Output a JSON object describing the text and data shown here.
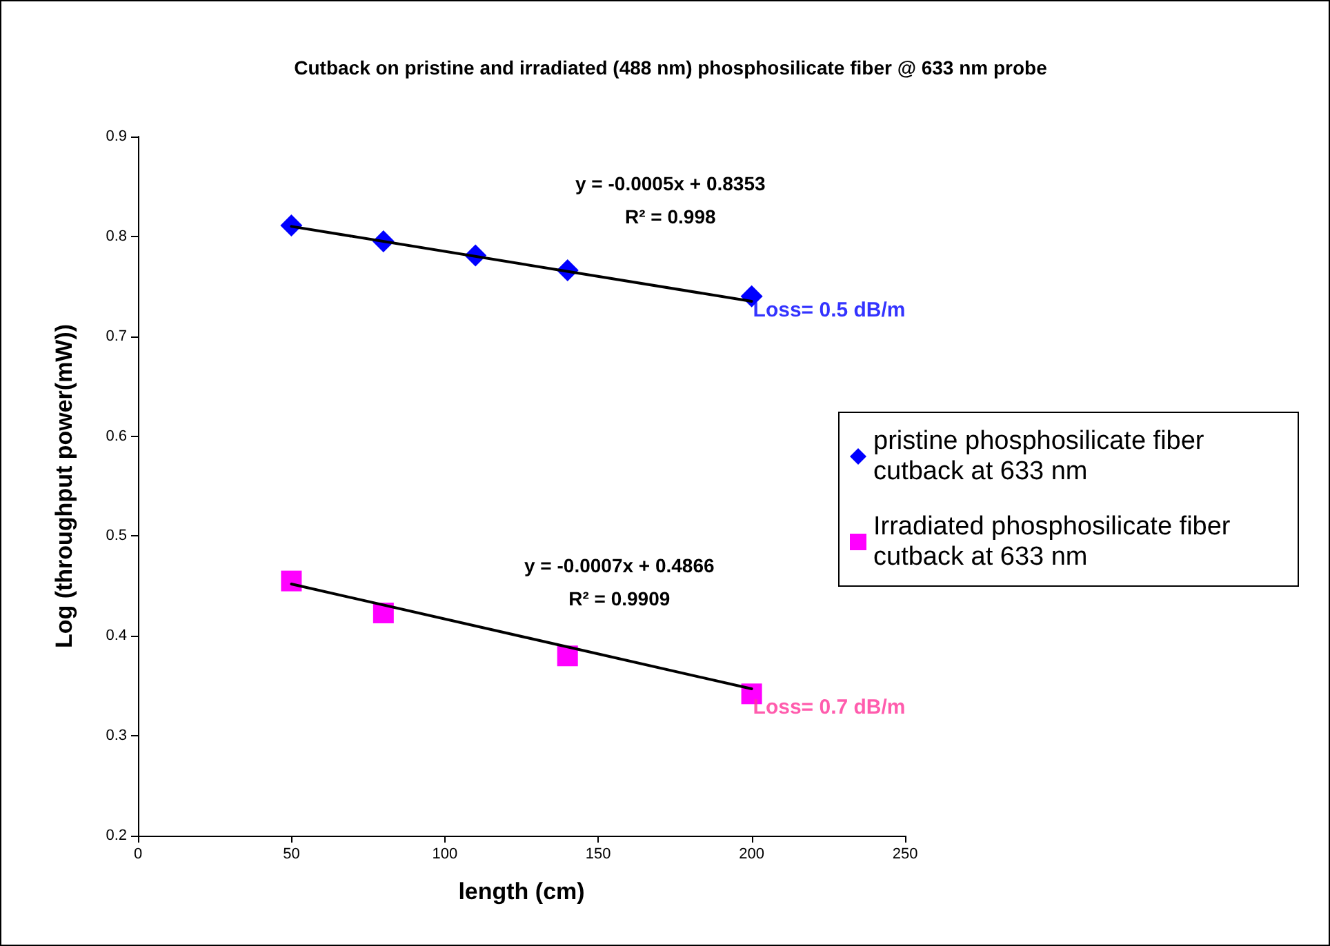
{
  "chart_data": {
    "type": "scatter",
    "title": "Cutback on pristine and irradiated (488 nm) phosphosilicate fiber @ 633 nm probe",
    "xlabel": "length (cm)",
    "ylabel": "Log (throughput power(mW))",
    "xlim": [
      0,
      250
    ],
    "xticks": [
      0,
      50,
      100,
      150,
      200,
      250
    ],
    "ylim": [
      0.2,
      0.9
    ],
    "yticks": [
      0.2,
      0.3,
      0.4,
      0.5,
      0.6,
      0.7,
      0.8,
      0.9
    ],
    "grid": false,
    "legend": "right",
    "series": [
      {
        "name": "pristine phosphosilicate fiber cutback at 633 nm",
        "color": "#0000ff",
        "marker": "diamond",
        "x": [
          50,
          80,
          110,
          140,
          200
        ],
        "values": [
          0.811,
          0.795,
          0.781,
          0.766,
          0.74
        ]
      },
      {
        "type": "line",
        "color": "#000000",
        "marker": "none",
        "x": [
          50,
          200
        ],
        "values": [
          0.81,
          0.735
        ]
      },
      {
        "name": "Irradiated phosphosilicate fiber cutback at 633 nm",
        "color": "#ff00ff",
        "marker": "square",
        "x": [
          50,
          80,
          140,
          200
        ],
        "values": [
          0.455,
          0.423,
          0.38,
          0.342
        ]
      },
      {
        "type": "line",
        "color": "#000000",
        "marker": "none",
        "x": [
          50,
          200
        ],
        "values": [
          0.452,
          0.347
        ]
      }
    ],
    "annotations": [
      "y = -0.0005x + 0.8353\nR² = 0.998",
      "y = -0.0007x + 0.4866\nR² = 0.9909",
      {
        "text": "Loss= 0.5 dB/m",
        "x": 200,
        "y": 0.74
      },
      {
        "text": "Loss= 0.7 dB/m",
        "x": 200,
        "y": 0.342
      }
    ]
  }
}
